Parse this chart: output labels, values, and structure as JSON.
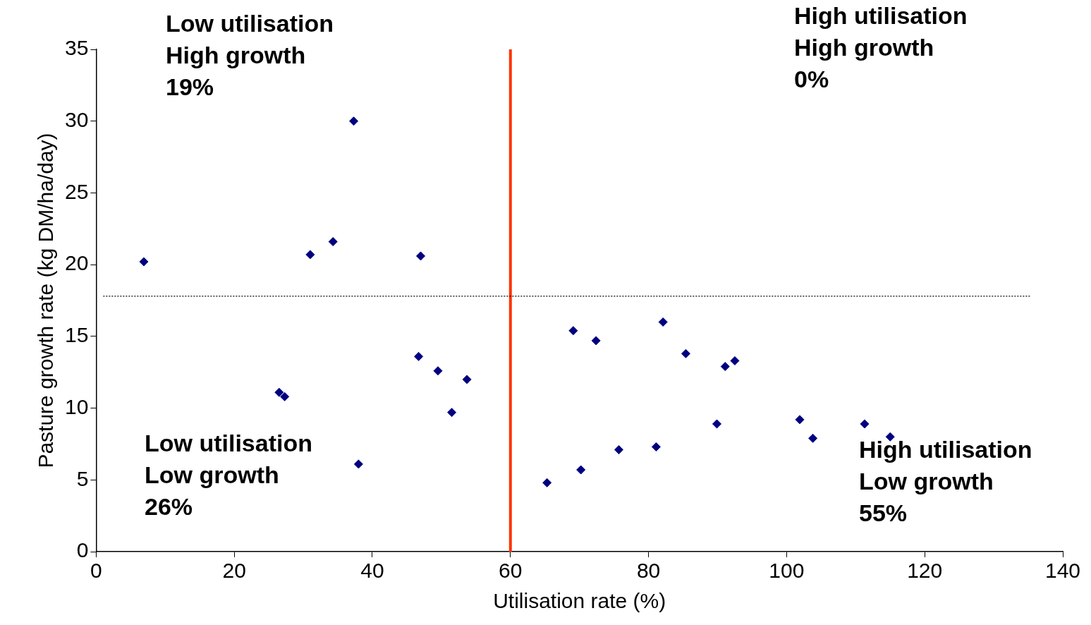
{
  "chart_data": {
    "type": "scatter",
    "xlabel": "Utilisation rate (%)",
    "ylabel": "Pasture growth rate (kg DM/ha/day)",
    "xlim": [
      0,
      140
    ],
    "xticks": [
      0,
      20,
      40,
      60,
      80,
      100,
      120,
      140
    ],
    "ylim": [
      0,
      35
    ],
    "yticks": [
      0,
      5,
      10,
      15,
      20,
      25,
      30,
      35
    ],
    "grid": false,
    "legend": false,
    "marker": "diamond",
    "series": [
      {
        "color": "#000080",
        "x": [
          6.9,
          37.3,
          31.0,
          34.3,
          47.0,
          26.5,
          27.3,
          38.0,
          46.7,
          49.5,
          51.5,
          53.7,
          65.3,
          69.1,
          70.2,
          72.4,
          75.7,
          81.1,
          82.1,
          85.4,
          89.9,
          91.1,
          92.5,
          101.9,
          103.8,
          111.3,
          115.0
        ],
        "values": [
          20.2,
          30.0,
          20.7,
          21.6,
          20.6,
          11.1,
          10.8,
          6.1,
          13.6,
          12.6,
          9.7,
          12.0,
          4.8,
          15.4,
          5.7,
          14.7,
          7.1,
          7.3,
          16.0,
          13.8,
          8.9,
          12.9,
          13.3,
          9.2,
          7.9,
          8.9,
          8.0
        ]
      }
    ],
    "ref_lines": [
      {
        "axis": "x",
        "value": 60,
        "color": "#ff3300",
        "line_style": "solid"
      },
      {
        "axis": "y",
        "value": 17.8,
        "color": "#000000",
        "line_style": "dotted"
      }
    ],
    "annotations": [
      "Low utilisation\nHigh growth\n19%",
      "High utilisation\nHigh growth\n0%",
      "Low utilisation\nLow growth\n26%",
      "High utilisation\nLow growth\n55%"
    ]
  }
}
